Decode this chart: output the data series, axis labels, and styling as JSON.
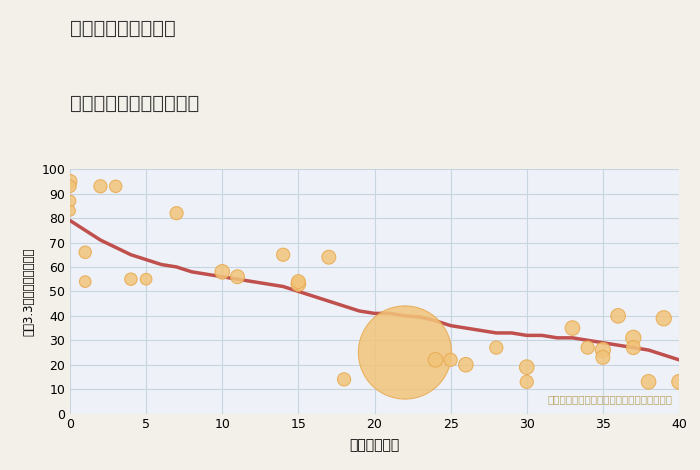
{
  "title_line1": "千葉県市原市深城の",
  "title_line2": "築年数別中古戸建て価格",
  "xlabel": "築年数（年）",
  "ylabel": "坪（3.3㎡）単価（万円）",
  "xlim": [
    0,
    40
  ],
  "ylim": [
    0,
    100
  ],
  "xticks": [
    0,
    5,
    10,
    15,
    20,
    25,
    30,
    35,
    40
  ],
  "yticks": [
    0,
    10,
    20,
    30,
    40,
    50,
    60,
    70,
    80,
    90,
    100
  ],
  "bg_color": "#f2f0e8",
  "plot_bg_color": "#eef2f8",
  "grid_color": "#c8d4e0",
  "bubble_color": "#f2c47a",
  "bubble_edge_color": "#e8aa50",
  "trend_color": "#c0504d",
  "annotation_text": "円の大きさは、取引のあった物件面積を示す",
  "annotation_color": "#b8a060",
  "title_color": "#333333",
  "scatter_x": [
    0,
    0,
    0,
    0,
    1,
    1,
    2,
    3,
    4,
    5,
    7,
    10,
    11,
    14,
    15,
    15,
    17,
    18,
    22,
    24,
    25,
    26,
    28,
    30,
    30,
    33,
    34,
    35,
    35,
    36,
    37,
    37,
    38,
    39,
    40
  ],
  "scatter_y": [
    95,
    93,
    87,
    83,
    66,
    54,
    93,
    93,
    55,
    55,
    82,
    58,
    56,
    65,
    53,
    54,
    64,
    14,
    25,
    22,
    22,
    20,
    27,
    19,
    13,
    35,
    27,
    26,
    23,
    40,
    31,
    27,
    13,
    39,
    13
  ],
  "scatter_size": [
    100,
    80,
    70,
    60,
    80,
    70,
    90,
    80,
    80,
    70,
    90,
    110,
    100,
    90,
    110,
    100,
    100,
    90,
    4500,
    110,
    90,
    110,
    90,
    110,
    90,
    110,
    90,
    120,
    100,
    110,
    120,
    100,
    110,
    120,
    110
  ],
  "trend_x": [
    0,
    0.5,
    1,
    1.5,
    2,
    3,
    4,
    5,
    6,
    7,
    8,
    9,
    10,
    11,
    12,
    13,
    14,
    15,
    16,
    17,
    18,
    19,
    20,
    21,
    22,
    23,
    24,
    25,
    26,
    27,
    28,
    29,
    30,
    31,
    32,
    33,
    34,
    35,
    36,
    37,
    38,
    39,
    40
  ],
  "trend_y": [
    79,
    77,
    75,
    73,
    71,
    68,
    65,
    63,
    61,
    60,
    58,
    57,
    56,
    55,
    54,
    53,
    52,
    50,
    48,
    46,
    44,
    42,
    41,
    41,
    40,
    39.5,
    38,
    36,
    35,
    34,
    33,
    33,
    32,
    32,
    31,
    31,
    30,
    29,
    28,
    27,
    26,
    24,
    22
  ]
}
